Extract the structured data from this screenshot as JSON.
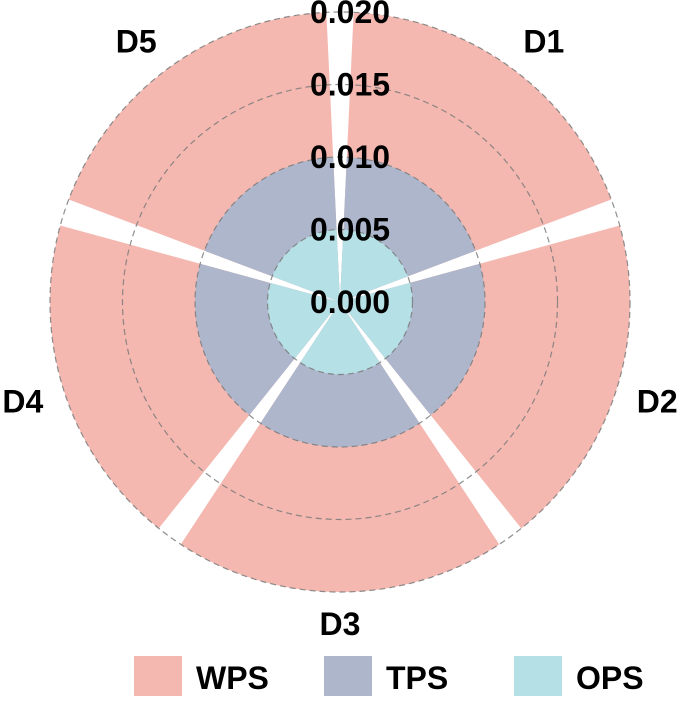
{
  "chart_data": {
    "type": "polar-bar",
    "categories": [
      "D1",
      "D2",
      "D3",
      "D4",
      "D5"
    ],
    "series": [
      {
        "name": "WPS",
        "values": [
          0.02,
          0.02,
          0.02,
          0.02,
          0.02
        ],
        "color": "#f4b8b0"
      },
      {
        "name": "TPS",
        "values": [
          0.01,
          0.01,
          0.01,
          0.01,
          0.01
        ],
        "color": "#aeb6cc"
      },
      {
        "name": "OPS",
        "values": [
          0.005,
          0.005,
          0.005,
          0.005,
          0.005
        ],
        "color": "#b5e0e6"
      }
    ],
    "radial_ticks": [
      "0.000",
      "0.005",
      "0.010",
      "0.015",
      "0.020"
    ],
    "radial_tick_values": [
      0.0,
      0.005,
      0.01,
      0.015,
      0.02
    ],
    "rlim": [
      0,
      0.02
    ],
    "grid": true,
    "legend_placement": "bottom"
  }
}
